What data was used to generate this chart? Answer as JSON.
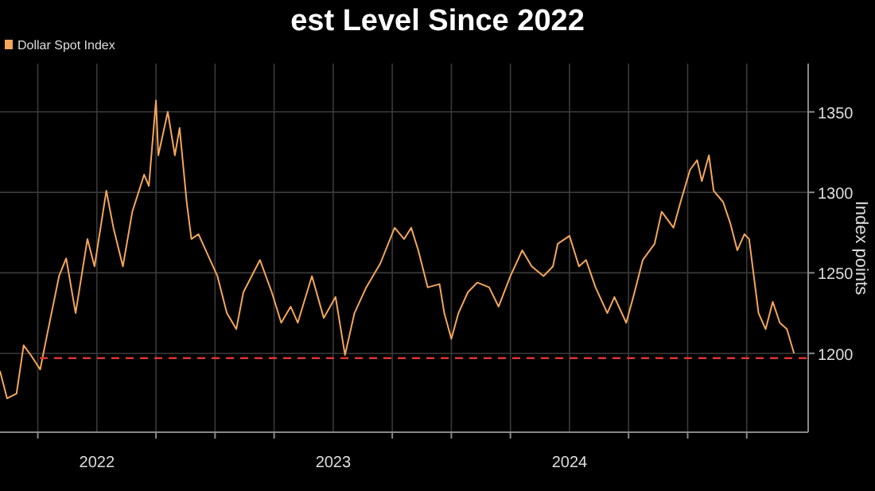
{
  "chart_data": {
    "type": "line",
    "title": "est Level Since 2022",
    "ylabel": "Index points",
    "legend": "top left",
    "grid": true,
    "xlim": [
      2022.09,
      2025.51
    ],
    "ylim": [
      1151,
      1380
    ],
    "xticks": [
      {
        "value": 2022.25,
        "label": null
      },
      {
        "value": 2022.5,
        "label": "2022"
      },
      {
        "value": 2022.75,
        "label": null
      },
      {
        "value": 2023,
        "label": null
      },
      {
        "value": 2023.25,
        "label": null
      },
      {
        "value": 2023.5,
        "label": "2023"
      },
      {
        "value": 2023.75,
        "label": null
      },
      {
        "value": 2024,
        "label": null
      },
      {
        "value": 2024.25,
        "label": null
      },
      {
        "value": 2024.5,
        "label": "2024"
      },
      {
        "value": 2024.75,
        "label": null
      },
      {
        "value": 2025,
        "label": null
      },
      {
        "value": 2025.25,
        "label": null
      }
    ],
    "yticks": [
      1200,
      1250,
      1300,
      1350
    ],
    "ref_lines": [
      {
        "axis": "y",
        "value": 1197,
        "color": "#e0342c",
        "line_style": "dashed"
      }
    ],
    "series": [
      {
        "name": "Dollar Spot Index",
        "color": "#f4a65a",
        "x": [
          2022.09,
          2022.12,
          2022.16,
          2022.19,
          2022.22,
          2022.26,
          2022.29,
          2022.34,
          2022.37,
          2022.41,
          2022.46,
          2022.49,
          2022.54,
          2022.57,
          2022.61,
          2022.65,
          2022.7,
          2022.72,
          2022.75,
          2022.76,
          2022.8,
          2022.83,
          2022.85,
          2022.88,
          2022.9,
          2022.93,
          2022.97,
          2023.01,
          2023.05,
          2023.09,
          2023.12,
          2023.19,
          2023.24,
          2023.28,
          2023.32,
          2023.35,
          2023.41,
          2023.46,
          2023.51,
          2023.55,
          2023.59,
          2023.64,
          2023.7,
          2023.76,
          2023.8,
          2023.83,
          2023.86,
          2023.9,
          2023.95,
          2023.97,
          2024.0,
          2024.03,
          2024.07,
          2024.11,
          2024.16,
          2024.2,
          2024.25,
          2024.3,
          2024.34,
          2024.39,
          2024.43,
          2024.45,
          2024.5,
          2024.54,
          2024.57,
          2024.61,
          2024.66,
          2024.69,
          2024.74,
          2024.77,
          2024.81,
          2024.86,
          2024.89,
          2024.94,
          2024.97,
          2025.01,
          2025.04,
          2025.06,
          2025.09,
          2025.11,
          2025.15,
          2025.18,
          2025.21,
          2025.24,
          2025.26,
          2025.3,
          2025.33,
          2025.36,
          2025.39,
          2025.42,
          2025.45
        ],
        "values": [
          1189,
          1172,
          1175,
          1205,
          1199,
          1190,
          1212,
          1248,
          1259,
          1225,
          1271,
          1254,
          1301,
          1278,
          1254,
          1288,
          1311,
          1304,
          1357,
          1323,
          1350,
          1323,
          1340,
          1294,
          1271,
          1274,
          1261,
          1248,
          1225,
          1215,
          1238,
          1258,
          1238,
          1219,
          1229,
          1219,
          1248,
          1222,
          1235,
          1199,
          1225,
          1241,
          1256,
          1278,
          1271,
          1278,
          1264,
          1241,
          1243,
          1225,
          1209,
          1225,
          1238,
          1244,
          1241,
          1229,
          1248,
          1264,
          1254,
          1248,
          1254,
          1268,
          1273,
          1254,
          1258,
          1241,
          1225,
          1235,
          1219,
          1235,
          1258,
          1268,
          1288,
          1278,
          1294,
          1314,
          1320,
          1307,
          1323,
          1301,
          1294,
          1281,
          1264,
          1274,
          1271,
          1225,
          1215,
          1232,
          1219,
          1215,
          1200
        ]
      }
    ]
  }
}
